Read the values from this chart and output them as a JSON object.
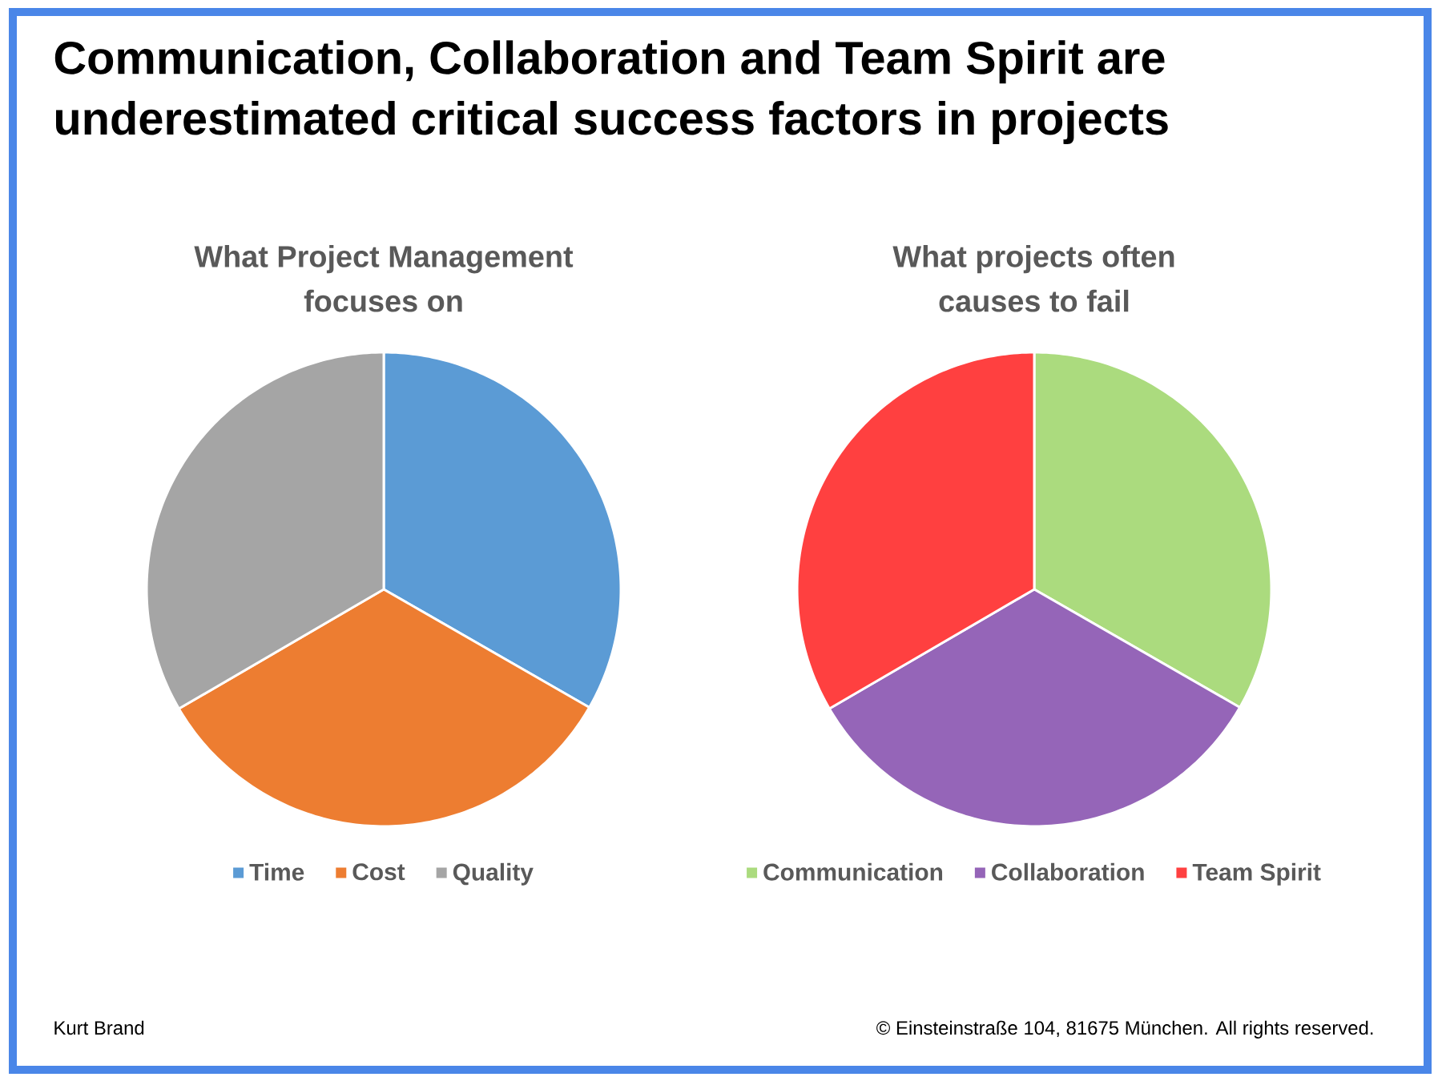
{
  "chart_data": [
    {
      "type": "other",
      "title": "Communication, Collaboration and Team Spirit are underestimated critical success factors in projects",
      "annotations": [
        "Kurt Brand",
        "© Einsteinstraße 104, 81675 München. All rights reserved."
      ]
    },
    {
      "type": "pie",
      "title": "What Project Management focuses on",
      "categories": [
        "Time",
        "Cost",
        "Quality"
      ],
      "values": [
        33.3,
        33.3,
        33.4
      ],
      "colors": [
        "#5b9bd5",
        "#ed7d31",
        "#a5a5a5"
      ],
      "legend": "bottom"
    },
    {
      "type": "pie",
      "title": "What projects often causes to fail",
      "categories": [
        "Communication",
        "Collaboration",
        "Team Spirit"
      ],
      "values": [
        33.3,
        33.3,
        33.4
      ],
      "colors": [
        "#abdb7e",
        "#9565b8",
        "#ff4040"
      ],
      "legend": "bottom"
    }
  ]
}
